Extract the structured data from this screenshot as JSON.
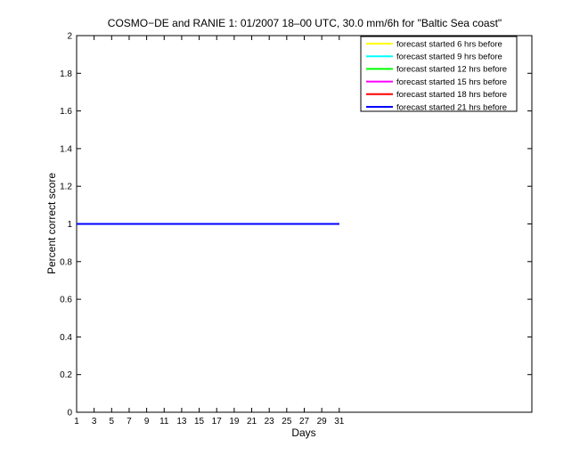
{
  "chart_data": {
    "type": "line",
    "title": "COSMO−DE and RANIE 1: 01/2007 18–00 UTC, 30.0 mm/6h for \"Baltic Sea coast\"",
    "xlabel": "Days",
    "ylabel": "Percent correct score",
    "xlim": [
      1,
      53
    ],
    "ylim": [
      0,
      2
    ],
    "x_ticks": [
      1,
      3,
      5,
      7,
      9,
      11,
      13,
      15,
      17,
      19,
      21,
      23,
      25,
      27,
      29,
      31
    ],
    "y_ticks": [
      0,
      0.2,
      0.4,
      0.6,
      0.8,
      1,
      1.2,
      1.4,
      1.6,
      1.8,
      2
    ],
    "y_tick_labels": [
      "0",
      "0.2",
      "0.4",
      "0.6",
      "0.8",
      "1",
      "1.2",
      "1.4",
      "1.6",
      "1.8",
      "2"
    ],
    "grid": false,
    "legend_position": "top-right",
    "series": [
      {
        "name": "forecast started 6 hrs before",
        "color": "#ffff00",
        "x": [
          1,
          31
        ],
        "y": [
          1,
          1
        ]
      },
      {
        "name": "forecast started 9 hrs before",
        "color": "#00ffff",
        "x": [
          1,
          31
        ],
        "y": [
          1,
          1
        ]
      },
      {
        "name": "forecast started 12 hrs before",
        "color": "#00ff00",
        "x": [
          1,
          31
        ],
        "y": [
          1,
          1
        ]
      },
      {
        "name": "forecast started 15 hrs before",
        "color": "#ff00ff",
        "x": [
          1,
          31
        ],
        "y": [
          1,
          1
        ]
      },
      {
        "name": "forecast started 18 hrs before",
        "color": "#ff0000",
        "x": [
          1,
          31
        ],
        "y": [
          1,
          1
        ]
      },
      {
        "name": "forecast started 21 hrs before",
        "color": "#0000ff",
        "x": [
          1,
          31
        ],
        "y": [
          1,
          1
        ]
      }
    ]
  }
}
